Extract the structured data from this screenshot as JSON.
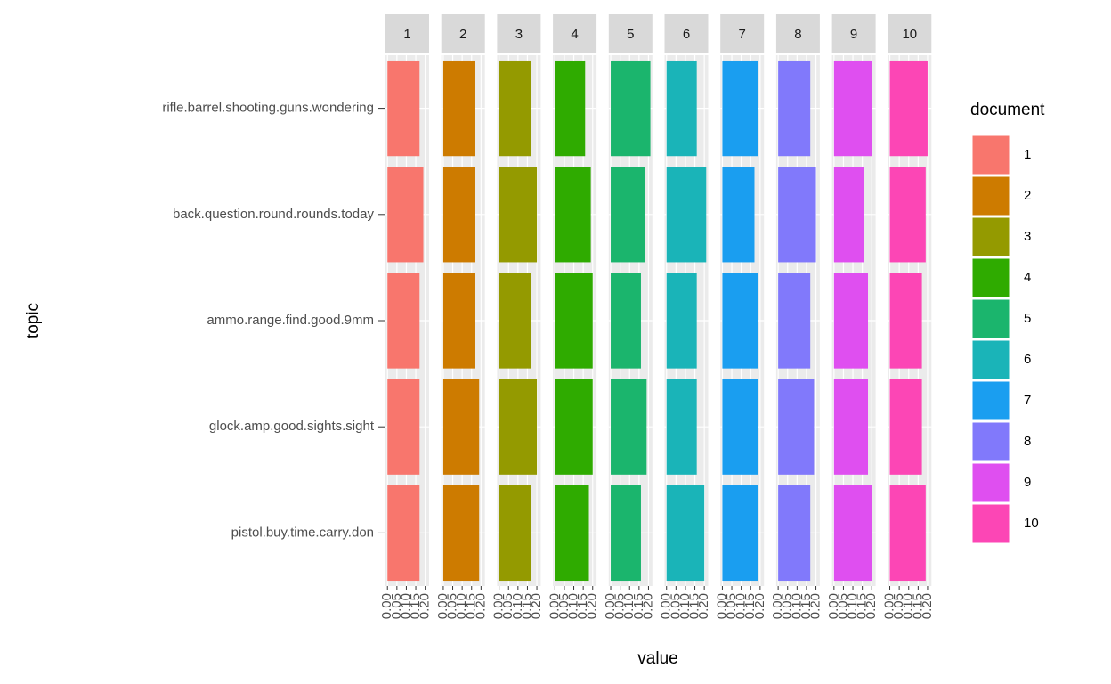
{
  "chart_data": {
    "type": "bar",
    "orientation": "horizontal",
    "facet": true,
    "x_label": "value",
    "y_label": "topic",
    "legend_title": "document",
    "categories": [
      "rifle.barrel.shooting.guns.wondering",
      "back.question.round.rounds.today",
      "ammo.range.find.good.9mm",
      "glock.amp.good.sights.sight",
      "pistol.buy.time.carry.don"
    ],
    "xlim": [
      -0.0105,
      0.2205
    ],
    "xticks": [
      {
        "value": 0,
        "label": "0.00"
      },
      {
        "value": 0.05,
        "label": "0.05"
      },
      {
        "value": 0.1,
        "label": "0.10"
      },
      {
        "value": 0.15,
        "label": "0.15"
      },
      {
        "value": 0.2,
        "label": "0.20"
      }
    ],
    "grid": true,
    "series": [
      {
        "name": "1",
        "color": "#f8766d",
        "values": [
          0.17,
          0.19,
          0.17,
          0.17,
          0.17
        ]
      },
      {
        "name": "2",
        "color": "#cd7b00",
        "values": [
          0.17,
          0.17,
          0.17,
          0.19,
          0.19
        ]
      },
      {
        "name": "3",
        "color": "#949a00",
        "values": [
          0.17,
          0.2,
          0.17,
          0.2,
          0.17
        ]
      },
      {
        "name": "4",
        "color": "#2fab00",
        "values": [
          0.16,
          0.19,
          0.2,
          0.2,
          0.18
        ]
      },
      {
        "name": "5",
        "color": "#1bb56d",
        "values": [
          0.21,
          0.18,
          0.16,
          0.19,
          0.16
        ]
      },
      {
        "name": "6",
        "color": "#1ab4b8",
        "values": [
          0.16,
          0.21,
          0.16,
          0.16,
          0.2
        ]
      },
      {
        "name": "7",
        "color": "#1a9ef0",
        "values": [
          0.19,
          0.17,
          0.19,
          0.19,
          0.19
        ]
      },
      {
        "name": "8",
        "color": "#8179fb",
        "values": [
          0.17,
          0.2,
          0.17,
          0.19,
          0.17
        ]
      },
      {
        "name": "9",
        "color": "#df4ff0",
        "values": [
          0.2,
          0.16,
          0.18,
          0.18,
          0.2
        ]
      },
      {
        "name": "10",
        "color": "#fc46b5",
        "values": [
          0.2,
          0.19,
          0.17,
          0.17,
          0.19
        ]
      }
    ]
  }
}
